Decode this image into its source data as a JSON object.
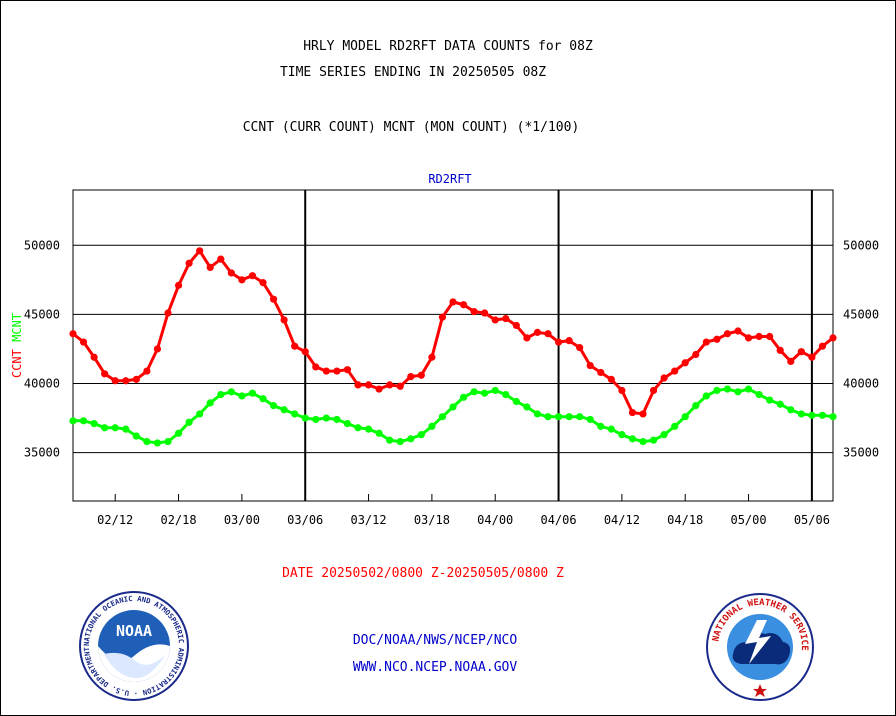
{
  "header": {
    "line1": "HRLY MODEL RD2RFT DATA COUNTS for 08Z",
    "line2": "TIME SERIES ENDING IN 20250505 08Z",
    "line3": "CCNT (CURR COUNT) MCNT (MON COUNT) (*1/100)"
  },
  "footer": {
    "date_range": "DATE 20250502/0800 Z-20250505/0800 Z",
    "org": "DOC/NOAA/NWS/NCEP/NCO",
    "url": "WWW.NCO.NCEP.NOAA.GOV"
  },
  "logos": {
    "noaa_text": "NOAA",
    "noaa_ring": "NATIONAL OCEANIC AND ATMOSPHERIC ADMINISTRATION · U.S. DEPARTMENT OF COMMERCE",
    "nws_ring": "NATIONAL WEATHER SERVICE"
  },
  "colors": {
    "ccnt": "#ff0000",
    "mcnt": "#00ff00",
    "text": "#000000",
    "blue": "#0000cc",
    "red_text": "#ff0000"
  },
  "chart_data": {
    "type": "line",
    "title": "RD2RFT",
    "ylabel_parts": [
      {
        "text": "CCNT",
        "color": "#ff0000"
      },
      {
        "text": "MCNT",
        "color": "#00ff00"
      }
    ],
    "ylim": [
      31500,
      54000
    ],
    "yticks": [
      35000,
      40000,
      45000,
      50000
    ],
    "ytick_labels": [
      "35000",
      "40000",
      "45000",
      "50000"
    ],
    "x_hours_range": [
      -73,
      -1
    ],
    "xticks": [
      {
        "hour": -69,
        "label": "02/12"
      },
      {
        "hour": -63,
        "label": "02/18"
      },
      {
        "hour": -57,
        "label": "03/00"
      },
      {
        "hour": -51,
        "label": "03/06"
      },
      {
        "hour": -45,
        "label": "03/12"
      },
      {
        "hour": -39,
        "label": "03/18"
      },
      {
        "hour": -33,
        "label": "04/00"
      },
      {
        "hour": -27,
        "label": "04/06"
      },
      {
        "hour": -21,
        "label": "04/12"
      },
      {
        "hour": -15,
        "label": "04/18"
      },
      {
        "hour": -9,
        "label": "05/00"
      },
      {
        "hour": -3,
        "label": "05/06"
      }
    ],
    "day_boundaries": [
      -51,
      -27,
      -3
    ],
    "grid": "horizontal",
    "series": [
      {
        "name": "CCNT",
        "color": "#ff0000",
        "values": [
          43600,
          43000,
          41900,
          40700,
          40200,
          40200,
          40300,
          40900,
          42500,
          45100,
          47100,
          48700,
          49600,
          48400,
          49000,
          48000,
          47500,
          47800,
          47300,
          46100,
          44600,
          42700,
          42300,
          41200,
          40900,
          40900,
          41000,
          39900,
          39900,
          39600,
          39900,
          39800,
          40500,
          40600,
          41900,
          44800,
          45900,
          45700,
          45200,
          45100,
          44600,
          44700,
          44200,
          43300,
          43700,
          43600,
          43000,
          43100,
          42600,
          41300,
          40800,
          40300,
          39500,
          37900,
          37800,
          39500,
          40400,
          40900,
          41500,
          42100,
          43000,
          43200,
          43600,
          43800,
          43300,
          43400,
          43400,
          42400,
          41600,
          42300,
          41900,
          42700,
          43300
        ]
      },
      {
        "name": "MCNT",
        "color": "#00ff00",
        "values": [
          37300,
          37300,
          37100,
          36800,
          36800,
          36700,
          36200,
          35800,
          35700,
          35800,
          36400,
          37200,
          37800,
          38600,
          39200,
          39400,
          39100,
          39300,
          38900,
          38400,
          38100,
          37800,
          37500,
          37400,
          37500,
          37400,
          37100,
          36800,
          36700,
          36400,
          35900,
          35800,
          36000,
          36300,
          36900,
          37600,
          38300,
          39000,
          39400,
          39300,
          39500,
          39200,
          38700,
          38300,
          37800,
          37600,
          37600,
          37600,
          37600,
          37400,
          36900,
          36700,
          36300,
          36000,
          35800,
          35900,
          36300,
          36900,
          37600,
          38400,
          39100,
          39500,
          39600,
          39400,
          39600,
          39200,
          38800,
          38500,
          38100,
          37800,
          37700,
          37700,
          37600
        ]
      }
    ]
  }
}
